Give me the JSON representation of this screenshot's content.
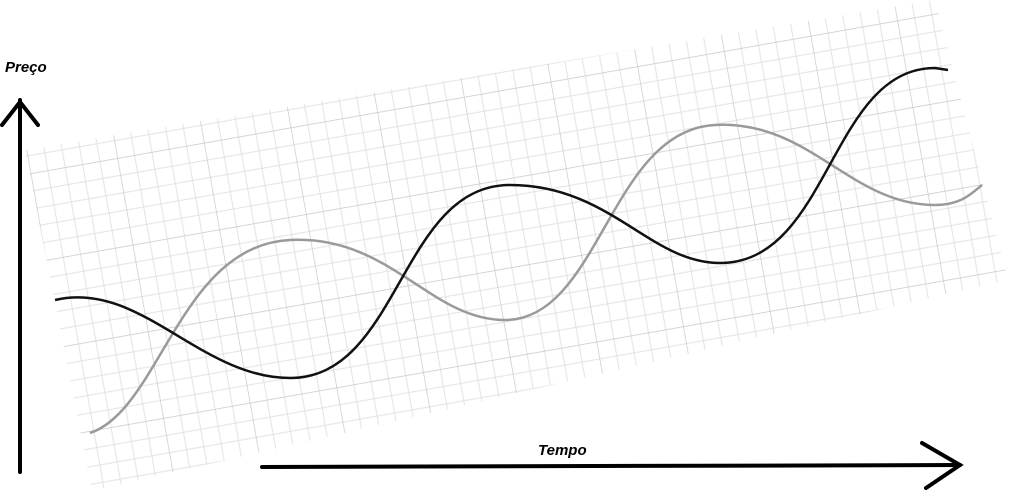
{
  "axes": {
    "y_label": "Preço",
    "x_label": "Tempo"
  }
}
